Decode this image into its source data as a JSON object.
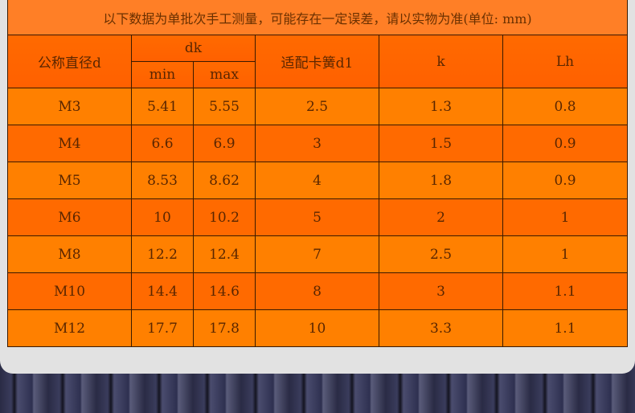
{
  "note": "以下数据为单批次手工测量，可能存在一定误差，请以实物为准(单位: mm)",
  "headers": {
    "d": "公称直径d",
    "dk": "dk",
    "min": "min",
    "max": "max",
    "d1": "适配卡簧d1",
    "k": "k",
    "lh": "Lh"
  },
  "rows": [
    [
      "M3",
      "5.41",
      "5.55",
      "2.5",
      "1.3",
      "0.8"
    ],
    [
      "M4",
      "6.6",
      "6.9",
      "3",
      "1.5",
      "0.9"
    ],
    [
      "M5",
      "8.53",
      "8.62",
      "4",
      "1.8",
      "0.9"
    ],
    [
      "M6",
      "10",
      "10.2",
      "5",
      "2",
      "1"
    ],
    [
      "M8",
      "12.2",
      "12.4",
      "7",
      "2.5",
      "1"
    ],
    [
      "M10",
      "14.4",
      "14.6",
      "8",
      "3",
      "1.1"
    ],
    [
      "M12",
      "17.7",
      "17.8",
      "10",
      "3.3",
      "1.1"
    ]
  ],
  "colors": {
    "odd_row": "#ff8000",
    "even_row": "#ff6a00",
    "header": "#ff6600",
    "title": "#ff7f26"
  }
}
